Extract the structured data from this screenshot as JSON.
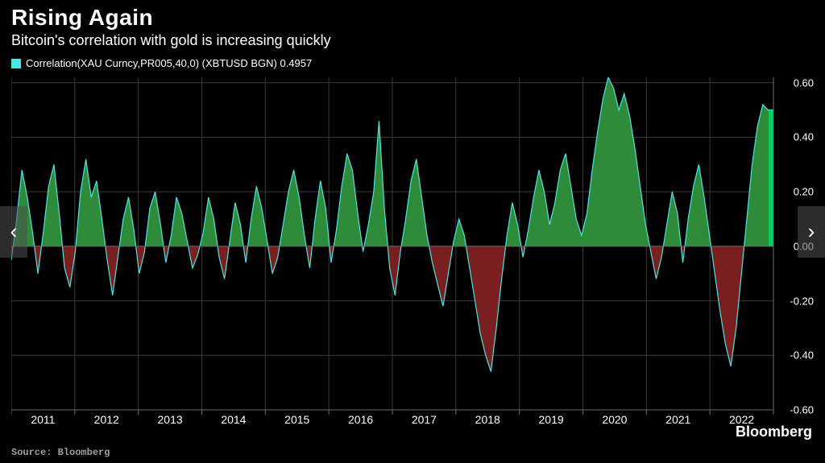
{
  "header": {
    "title": "Rising Again",
    "subtitle": "Bitcoin's correlation with gold is increasing quickly"
  },
  "legend": {
    "swatch_color": "#4fe3e3",
    "text": "Correlation(XAU Curncy,PR005,40,0) (XBTUSD BGN) 0.4957"
  },
  "chart": {
    "type": "area",
    "background_color": "#000000",
    "grid_color": "#3a3a3a",
    "axis_color": "#6a6a6a",
    "line_color": "#4fe3e3",
    "line_width": 1.2,
    "positive_fill": "#2e8b3a",
    "negative_fill": "#7a1f1f",
    "last_bar_fill": "#00d060",
    "label_color": "#ffffff",
    "label_fontsize": 14,
    "y": {
      "min": -0.6,
      "max": 0.62,
      "ticks": [
        -0.6,
        -0.4,
        -0.2,
        0.0,
        0.2,
        0.4,
        0.6
      ],
      "tick_labels": [
        "-0.60",
        "-0.40",
        "-0.20",
        "0.00",
        "0.20",
        "0.40",
        "0.60"
      ]
    },
    "x": {
      "years": [
        2011,
        2012,
        2013,
        2014,
        2015,
        2016,
        2017,
        2018,
        2019,
        2020,
        2021,
        2022
      ]
    },
    "series": [
      -0.05,
      0.1,
      0.28,
      0.18,
      0.05,
      -0.1,
      0.05,
      0.22,
      0.3,
      0.12,
      -0.08,
      -0.15,
      -0.02,
      0.2,
      0.32,
      0.18,
      0.24,
      0.1,
      -0.05,
      -0.18,
      -0.04,
      0.1,
      0.18,
      0.06,
      -0.1,
      -0.02,
      0.14,
      0.2,
      0.08,
      -0.06,
      0.04,
      0.18,
      0.12,
      0.02,
      -0.08,
      -0.03,
      0.05,
      0.18,
      0.1,
      -0.04,
      -0.12,
      0.02,
      0.16,
      0.08,
      -0.06,
      0.1,
      0.22,
      0.14,
      0.02,
      -0.1,
      -0.04,
      0.08,
      0.2,
      0.28,
      0.18,
      0.04,
      -0.08,
      0.1,
      0.24,
      0.14,
      -0.06,
      0.06,
      0.22,
      0.34,
      0.28,
      0.12,
      -0.02,
      0.08,
      0.2,
      0.46,
      0.14,
      -0.08,
      -0.18,
      -0.02,
      0.1,
      0.24,
      0.32,
      0.18,
      0.04,
      -0.06,
      -0.14,
      -0.22,
      -0.1,
      0.02,
      0.1,
      0.04,
      -0.08,
      -0.2,
      -0.32,
      -0.4,
      -0.46,
      -0.3,
      -0.12,
      0.04,
      0.16,
      0.08,
      -0.04,
      0.06,
      0.18,
      0.28,
      0.2,
      0.08,
      0.16,
      0.28,
      0.34,
      0.22,
      0.1,
      0.04,
      0.12,
      0.28,
      0.42,
      0.54,
      0.62,
      0.58,
      0.5,
      0.56,
      0.48,
      0.36,
      0.22,
      0.08,
      -0.02,
      -0.12,
      -0.04,
      0.08,
      0.2,
      0.12,
      -0.06,
      0.1,
      0.22,
      0.3,
      0.18,
      0.04,
      -0.1,
      -0.24,
      -0.36,
      -0.44,
      -0.3,
      -0.1,
      0.1,
      0.3,
      0.44,
      0.52,
      0.5,
      0.5
    ]
  },
  "footer": {
    "source": "Source: Bloomberg",
    "brand": "Bloomberg"
  },
  "nav": {
    "prev_icon": "‹",
    "next_icon": "›"
  }
}
